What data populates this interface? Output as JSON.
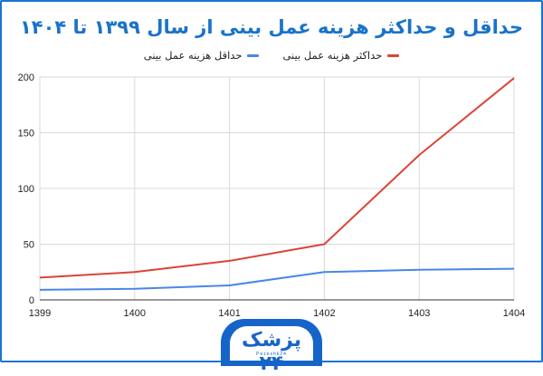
{
  "chart_data": {
    "type": "line",
    "title": "حداقل و حداکثر هزینه عمل بینی از سال ۱۳۹۹ تا ۱۴۰۴",
    "xlabel": "",
    "ylabel": "",
    "x": [
      "1399",
      "1400",
      "1401",
      "1402",
      "1403",
      "1404"
    ],
    "ylim": [
      0,
      200
    ],
    "yticks": [
      "0",
      "50",
      "100",
      "150",
      "200"
    ],
    "grid": true,
    "legend_position": "top",
    "series": [
      {
        "name": "حداکثر هزینه عمل بینی",
        "color": "#db4437",
        "values": [
          20,
          25,
          35,
          50,
          130,
          199
        ]
      },
      {
        "name": "حداقل هزینه عمل بینی",
        "color": "#4a86e8",
        "values": [
          9,
          10,
          13,
          25,
          27,
          28
        ]
      }
    ]
  },
  "logo": {
    "text": "پزشک ۲۴",
    "sub": "Pezeshk24"
  }
}
